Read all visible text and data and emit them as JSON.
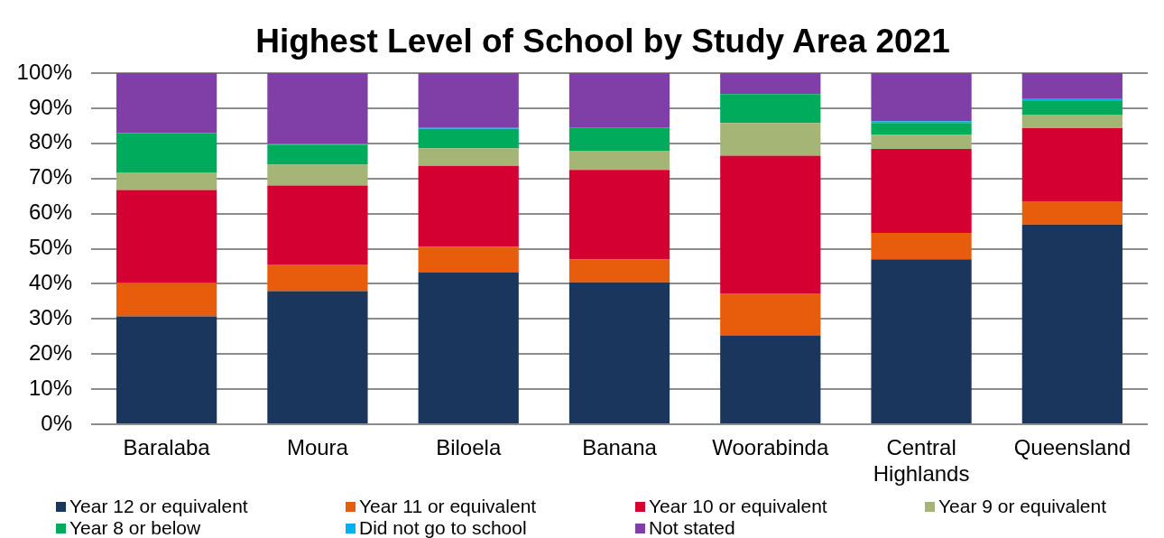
{
  "chart_data": {
    "type": "bar",
    "stacked": true,
    "title": "Highest Level of School by Study Area 2021",
    "categories": [
      "Baralaba",
      "Moura",
      "Biloela",
      "Banana",
      "Woorabinda",
      "Central Highlands",
      "Queensland"
    ],
    "series": [
      {
        "name": "Year 12 or equivalent",
        "color": "#1b365d",
        "values": [
          30.7,
          37.9,
          43.3,
          40.4,
          25.3,
          47.0,
          56.9
        ]
      },
      {
        "name": "Year 11 or equivalent",
        "color": "#e85d0c",
        "values": [
          9.5,
          7.6,
          7.2,
          6.5,
          12.0,
          7.5,
          6.6
        ]
      },
      {
        "name": "Year 10 or equivalent",
        "color": "#d50032",
        "values": [
          26.5,
          22.5,
          23.1,
          25.5,
          39.2,
          23.9,
          20.8
        ]
      },
      {
        "name": "Year 9 or equivalent",
        "color": "#a4b576",
        "values": [
          5.0,
          5.9,
          5.0,
          5.5,
          9.3,
          4.0,
          3.9
        ]
      },
      {
        "name": "Year 8 or below",
        "color": "#00ab5b",
        "values": [
          11.2,
          5.7,
          5.5,
          6.4,
          8.2,
          3.4,
          3.8
        ]
      },
      {
        "name": "Did not go to school",
        "color": "#00b0f0",
        "values": [
          0,
          0.3,
          0.5,
          0.3,
          0,
          0.5,
          0.6
        ]
      },
      {
        "name": "Not stated",
        "color": "#7f3fa6",
        "values": [
          17.1,
          20.1,
          15.4,
          15.4,
          6.0,
          13.7,
          7.4
        ]
      }
    ],
    "ylim": [
      0,
      100
    ],
    "yticks": [
      {
        "value": 0,
        "label": "0%"
      },
      {
        "value": 10,
        "label": "10%"
      },
      {
        "value": 20,
        "label": "20%"
      },
      {
        "value": 30,
        "label": "30%"
      },
      {
        "value": 40,
        "label": "40%"
      },
      {
        "value": 50,
        "label": "50%"
      },
      {
        "value": 60,
        "label": "60%"
      },
      {
        "value": 70,
        "label": "70%"
      },
      {
        "value": 80,
        "label": "80%"
      },
      {
        "value": 90,
        "label": "90%"
      },
      {
        "value": 100,
        "label": "100%"
      }
    ],
    "grid": "y",
    "legend": "bottom"
  }
}
